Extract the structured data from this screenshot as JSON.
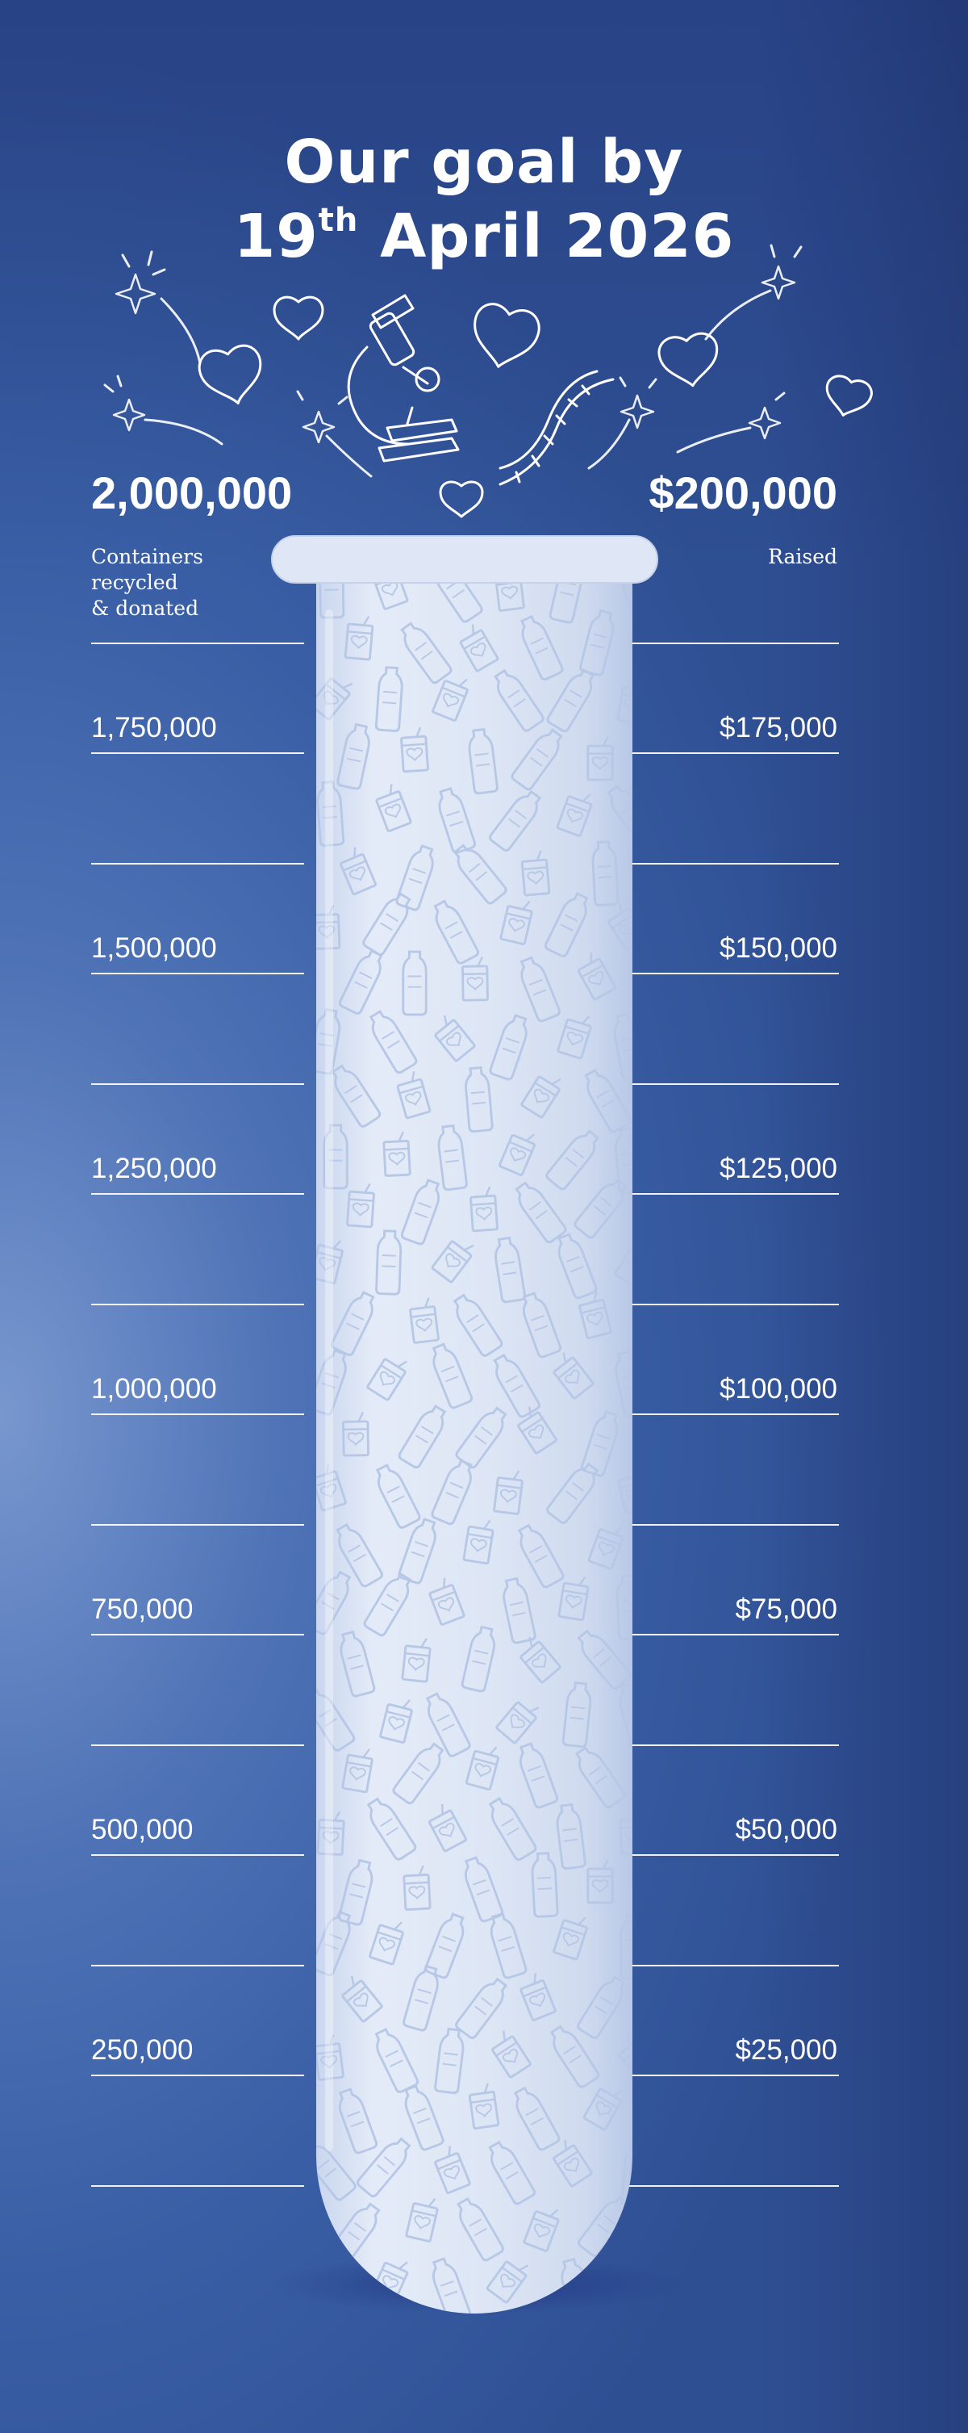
{
  "header": {
    "line1": "Our goal by",
    "date_day": "19",
    "date_suffix": "th",
    "date_rest": " April 2026"
  },
  "goal": {
    "containers_total": "2,000,000",
    "containers_caption": [
      "Containers",
      "recycled",
      "& donated"
    ],
    "money_total": "$200,000",
    "money_caption": "Raised"
  },
  "scale": {
    "containers_labels": [
      "1,750,000",
      "1,500,000",
      "1,250,000",
      "1,000,000",
      "750,000",
      "500,000",
      "250,000"
    ],
    "money_labels": [
      "$175,000",
      "$150,000",
      "$125,000",
      "$100,000",
      "$75,000",
      "$50,000",
      "$25,000"
    ]
  },
  "progress": {
    "containers_collected": 0,
    "fraction_filled": 0
  },
  "colors": {
    "background": "#4a6db3",
    "text": "#ffffff",
    "tube_fill": "#dbe4f4"
  },
  "icons": [
    "heart-icon",
    "microscope-icon",
    "dna-icon",
    "sparkle-icon",
    "bottle-icon",
    "juice-box-icon",
    "can-icon"
  ]
}
